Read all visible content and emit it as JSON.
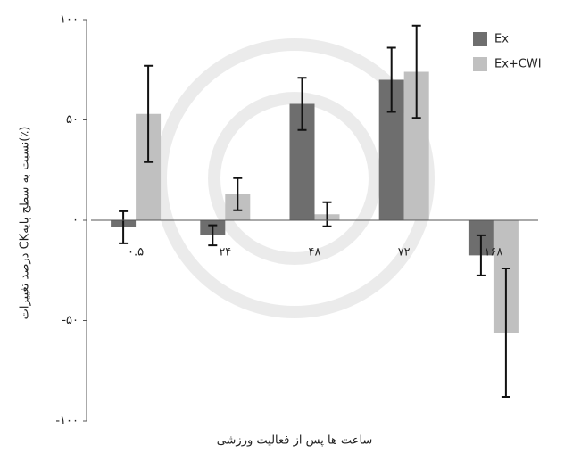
{
  "chart_data": {
    "type": "bar",
    "y_label": "درصد تغییرات CKنسبت به سطح پایه(٪)",
    "x_label": "ساعت ها پس از فعالیت ورزشی",
    "categories": [
      "۰.۵",
      "۲۴",
      "۴۸",
      "۷۲",
      "۱۶۸"
    ],
    "series": [
      {
        "name": "Ex",
        "color": "#6e6e6e",
        "values": [
          -3.5,
          -7.5,
          58,
          70,
          -17.5
        ],
        "errors": [
          8,
          5,
          13,
          16,
          10
        ]
      },
      {
        "name": "Ex+CWI",
        "color": "#c0c0c0",
        "values": [
          53,
          13,
          3,
          74,
          -56
        ],
        "errors": [
          24,
          8,
          6,
          23,
          32
        ]
      }
    ],
    "ylim": [
      -100,
      100
    ],
    "yticks": [
      {
        "value": -100,
        "label": "-۱۰۰"
      },
      {
        "value": -50,
        "label": "-۵۰"
      },
      {
        "value": 0,
        "label": "۰"
      },
      {
        "value": 50,
        "label": "۵۰"
      },
      {
        "value": 100,
        "label": "۱۰۰"
      }
    ],
    "legend": "top-right"
  }
}
